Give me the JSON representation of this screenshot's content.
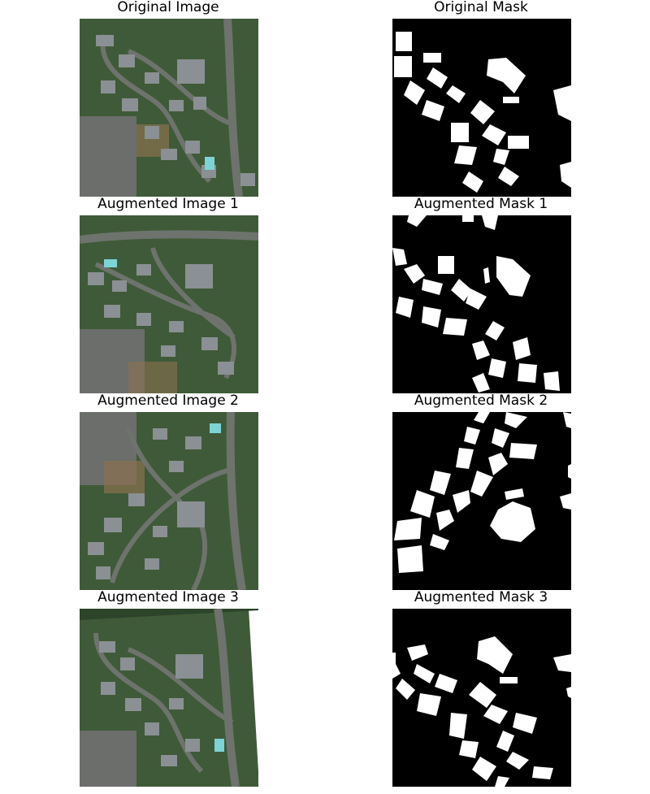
{
  "figure": {
    "rows": [
      {
        "image_title": "Original Image",
        "mask_title": "Original Mask"
      },
      {
        "image_title": "Augmented Image 1",
        "mask_title": "Augmented Mask 1"
      },
      {
        "image_title": "Augmented Image 2",
        "mask_title": "Augmented Mask 2"
      },
      {
        "image_title": "Augmented Image 3",
        "mask_title": "Augmented Mask 3"
      }
    ]
  },
  "colors": {
    "forest": "#3f5a38",
    "forest_dark": "#2c4429",
    "road": "#6e736d",
    "roof": "#8a9093",
    "parking": "#6b6e6a",
    "pool": "#7ed3d6",
    "dirt": "#8a7150",
    "mask_bg": "#000000",
    "mask_fg": "#ffffff"
  }
}
